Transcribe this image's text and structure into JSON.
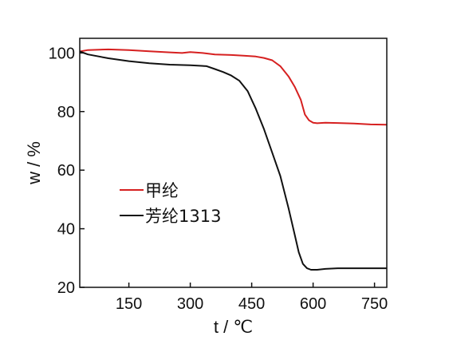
{
  "chart_data": {
    "type": "line",
    "xlabel": "t / ℃",
    "ylabel": "w / %",
    "xlim": [
      30,
      780
    ],
    "ylim": [
      20,
      105
    ],
    "xticks": [
      150,
      300,
      450,
      600,
      750
    ],
    "yticks": [
      20,
      40,
      60,
      80,
      100
    ],
    "grid": false,
    "legend_position": "center-left",
    "series": [
      {
        "name": "甲纶",
        "color": "#d62020",
        "x": [
          30,
          50,
          100,
          150,
          200,
          250,
          280,
          300,
          330,
          360,
          400,
          430,
          460,
          480,
          500,
          520,
          540,
          555,
          570,
          580,
          590,
          600,
          610,
          630,
          660,
          700,
          740,
          780
        ],
        "y": [
          100.5,
          101.0,
          101.2,
          101.0,
          100.6,
          100.2,
          100.0,
          100.3,
          100.0,
          99.5,
          99.3,
          99.1,
          98.8,
          98.3,
          97.5,
          95.5,
          92.0,
          88.5,
          84.0,
          79.0,
          77.0,
          76.2,
          76.0,
          76.2,
          76.1,
          75.9,
          75.6,
          75.5
        ]
      },
      {
        "name": "芳纶1313",
        "color": "#111111",
        "x": [
          30,
          50,
          100,
          150,
          200,
          250,
          300,
          340,
          360,
          380,
          400,
          420,
          440,
          460,
          480,
          500,
          520,
          540,
          555,
          565,
          575,
          585,
          595,
          610,
          630,
          660,
          700,
          740,
          780
        ],
        "y": [
          100.5,
          99.5,
          98.2,
          97.2,
          96.5,
          96.0,
          95.8,
          95.5,
          94.5,
          93.5,
          92.3,
          90.5,
          87.0,
          81.0,
          74.0,
          66.0,
          58.0,
          47.0,
          38.0,
          32.0,
          28.0,
          26.5,
          26.0,
          26.0,
          26.3,
          26.5,
          26.5,
          26.5,
          26.5
        ]
      }
    ]
  }
}
